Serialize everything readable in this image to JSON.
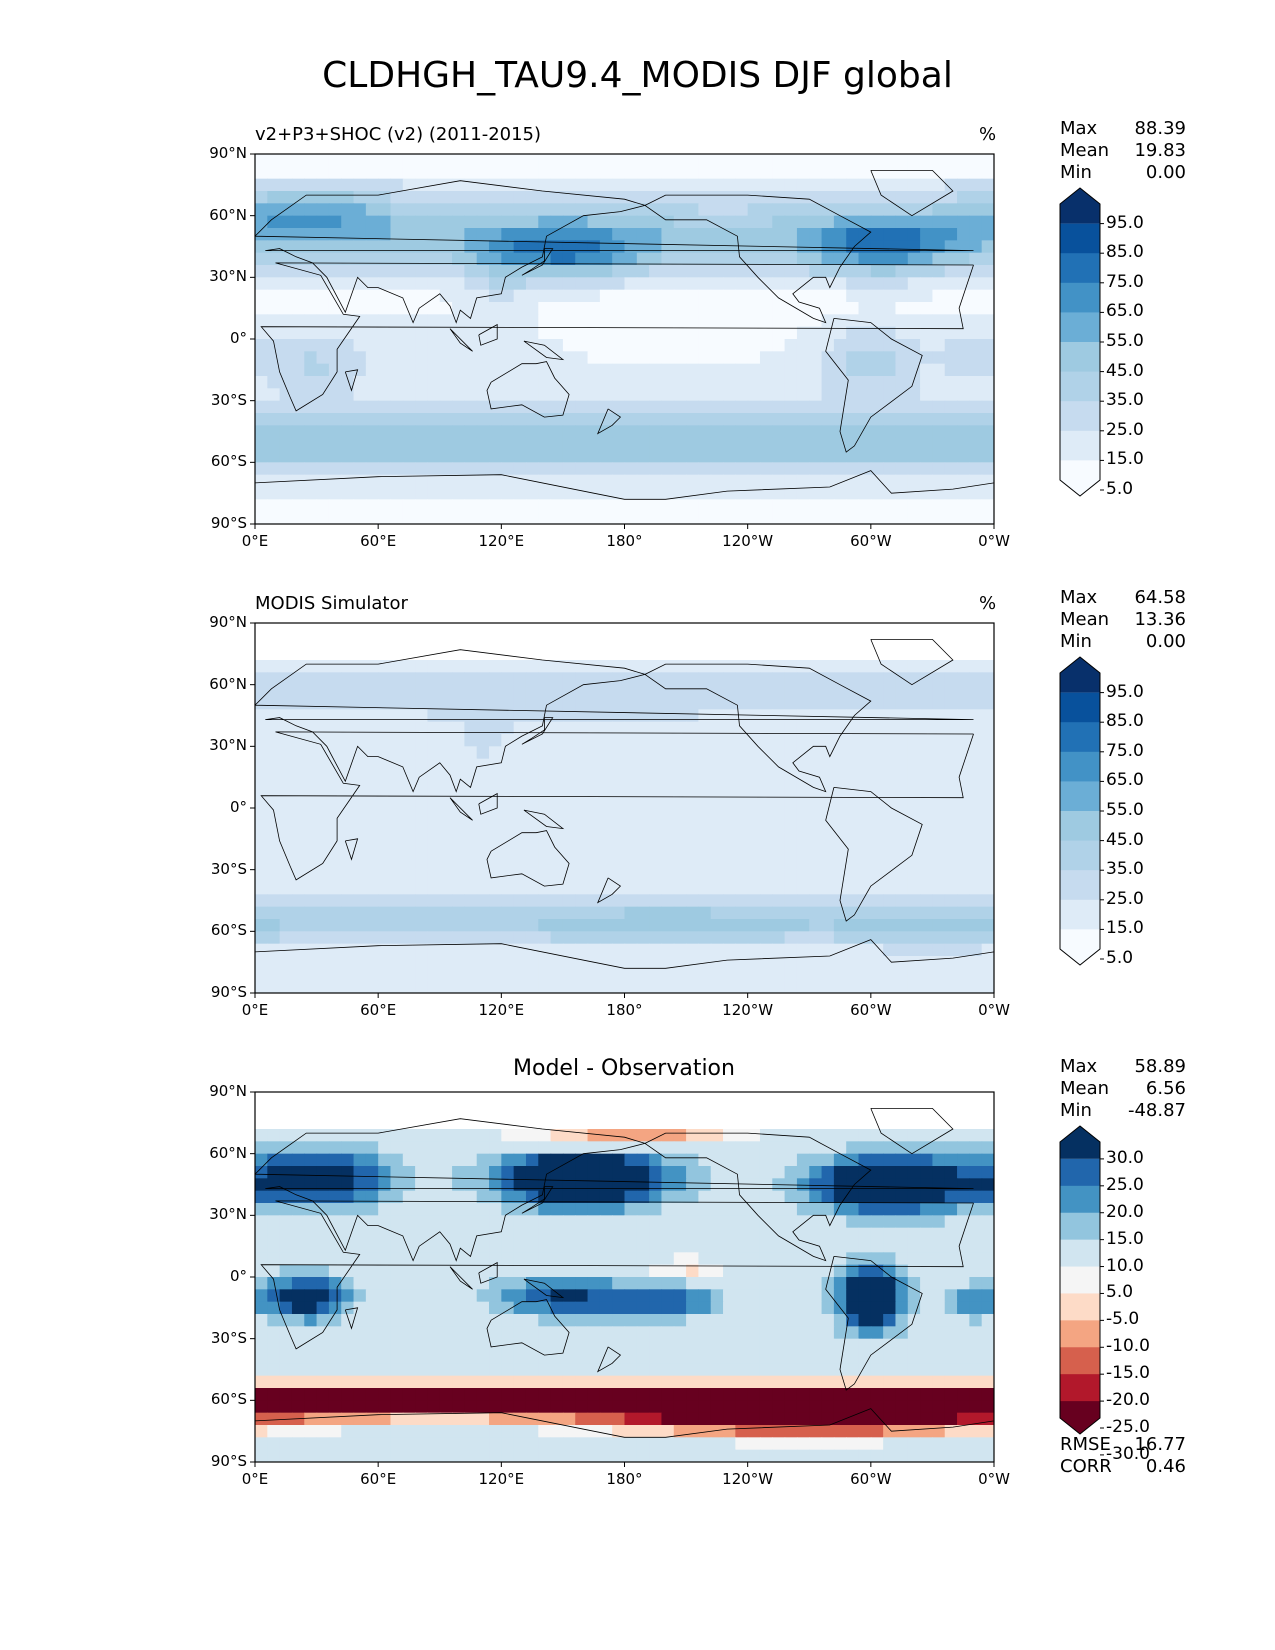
{
  "figure": {
    "title": "CLDHGH_TAU9.4_MODIS DJF global"
  },
  "colors": {
    "cmap_pct": [
      "#f7fbff",
      "#deebf7",
      "#c6dbef",
      "#b0d2e8",
      "#9ecae1",
      "#6baed6",
      "#4292c6",
      "#2171b5",
      "#08519c",
      "#08306b"
    ],
    "cmap_diff": [
      "#67001f",
      "#b2182b",
      "#d6604d",
      "#f4a582",
      "#fddbc7",
      "#f5f5f5",
      "#d1e5f0",
      "#92c5de",
      "#4393c3",
      "#2166ac",
      "#053061"
    ],
    "land_line": "#000000"
  },
  "chart_data": [
    {
      "type": "heatmap",
      "id": "test",
      "title": "v2+P3+SHOC (v2) (2011-2015)",
      "units": "%",
      "stats": {
        "Max": "88.39",
        "Mean": "19.83",
        "Min": "0.00"
      },
      "xticks": [
        "0°E",
        "60°E",
        "120°E",
        "180°",
        "120°W",
        "60°W",
        "0°W"
      ],
      "yticks": [
        "90°N",
        "60°N",
        "30°N",
        "0°",
        "30°S",
        "60°S",
        "90°S"
      ],
      "colorbar_levels": [
        "95.0",
        "85.0",
        "75.0",
        "65.0",
        "55.0",
        "45.0",
        "35.0",
        "25.0",
        "15.0",
        "5.0"
      ],
      "xlim": [
        0,
        360
      ],
      "ylim": [
        -90,
        90
      ]
    },
    {
      "type": "heatmap",
      "id": "ref",
      "title": "MODIS Simulator",
      "units": "%",
      "stats": {
        "Max": "64.58",
        "Mean": "13.36",
        "Min": "0.00"
      },
      "xticks": [
        "0°E",
        "60°E",
        "120°E",
        "180°",
        "120°W",
        "60°W",
        "0°W"
      ],
      "yticks": [
        "90°N",
        "60°N",
        "30°N",
        "0°",
        "30°S",
        "60°S",
        "90°S"
      ],
      "colorbar_levels": [
        "95.0",
        "85.0",
        "75.0",
        "65.0",
        "55.0",
        "45.0",
        "35.0",
        "25.0",
        "15.0",
        "5.0"
      ],
      "xlim": [
        0,
        360
      ],
      "ylim": [
        -90,
        90
      ]
    },
    {
      "type": "heatmap",
      "id": "diff",
      "title": "Model - Observation",
      "units": "",
      "stats": {
        "Max": "58.89",
        "Mean": "6.56",
        "Min": "-48.87"
      },
      "metrics": {
        "RMSE": "16.77",
        "CORR": "0.46"
      },
      "xticks": [
        "0°E",
        "60°E",
        "120°E",
        "180°",
        "120°W",
        "60°W",
        "0°W"
      ],
      "yticks": [
        "90°N",
        "60°N",
        "30°N",
        "0°",
        "30°S",
        "60°S",
        "90°S"
      ],
      "colorbar_levels": [
        "30.0",
        "25.0",
        "20.0",
        "15.0",
        "10.0",
        "5.0",
        "-5.0",
        "-10.0",
        "-15.0",
        "-20.0",
        "-25.0",
        "-30.0"
      ],
      "xlim": [
        0,
        360
      ],
      "ylim": [
        -90,
        90
      ]
    }
  ]
}
